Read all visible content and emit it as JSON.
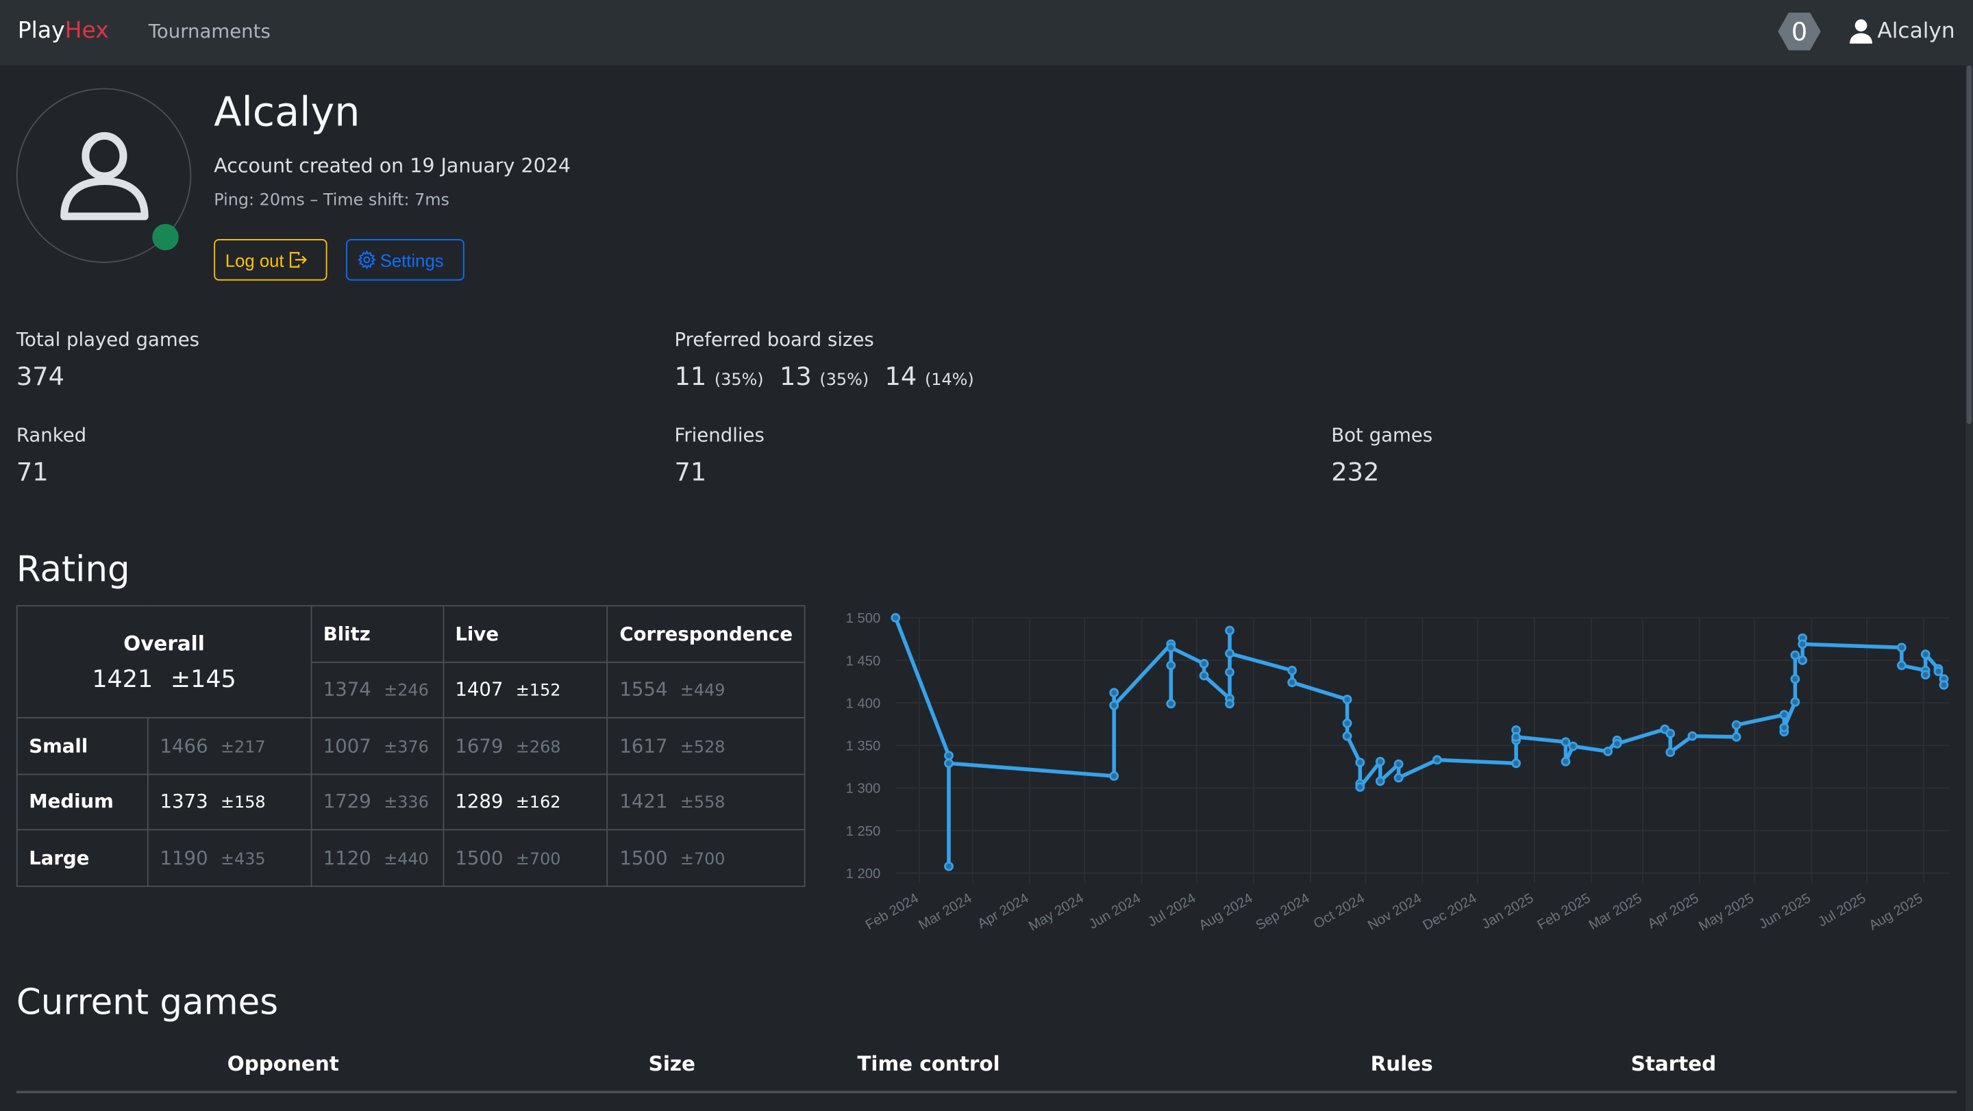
{
  "nav": {
    "logo_play": "Play",
    "logo_hex": "Hex",
    "tournaments": "Tournaments",
    "notification_count": "0",
    "username": "Alcalyn"
  },
  "profile": {
    "name": "Alcalyn",
    "created": "Account created on 19 January 2024",
    "ping": "Ping: 20ms – Time shift: 7ms",
    "logout": "Log out",
    "settings": "Settings",
    "online_color": "#198754"
  },
  "stats": {
    "total": {
      "label": "Total played games",
      "value": "374"
    },
    "preferred": {
      "label": "Preferred board sizes",
      "sizes": [
        {
          "size": "11",
          "pct": "(35%)"
        },
        {
          "size": "13",
          "pct": "(35%)"
        },
        {
          "size": "14",
          "pct": "(14%)"
        }
      ]
    },
    "ranked": {
      "label": "Ranked",
      "value": "71"
    },
    "friendlies": {
      "label": "Friendlies",
      "value": "71"
    },
    "bot": {
      "label": "Bot games",
      "value": "232"
    }
  },
  "rating": {
    "title": "Rating",
    "headers": {
      "overall": "Overall",
      "blitz": "Blitz",
      "live": "Live",
      "correspondence": "Correspondence"
    },
    "overall": {
      "value": "1421",
      "dev": "±145"
    },
    "overall_row": {
      "blitz": [
        "1374",
        "±246"
      ],
      "live": [
        "1407",
        "±152"
      ],
      "correspondence": [
        "1554",
        "±449"
      ]
    },
    "rows": [
      {
        "label": "Small",
        "overall": [
          "1466",
          "±217"
        ],
        "blitz": [
          "1007",
          "±376"
        ],
        "live": [
          "1679",
          "±268"
        ],
        "correspondence": [
          "1617",
          "±528"
        ]
      },
      {
        "label": "Medium",
        "overall": [
          "1373",
          "±158"
        ],
        "blitz": [
          "1729",
          "±336"
        ],
        "live": [
          "1289",
          "±162"
        ],
        "correspondence": [
          "1421",
          "±558"
        ]
      },
      {
        "label": "Large",
        "overall": [
          "1190",
          "±435"
        ],
        "blitz": [
          "1120",
          "±440"
        ],
        "live": [
          "1500",
          "±700"
        ],
        "correspondence": [
          "1500",
          "±700"
        ]
      }
    ]
  },
  "chart_data": {
    "type": "line",
    "color": "#36a2eb",
    "grid": true,
    "ylim": [
      1200,
      1500
    ],
    "yticks": [
      "1 500",
      "1 450",
      "1 400",
      "1 350",
      "1 300",
      "1 250",
      "1 200"
    ],
    "yticks_values": [
      1500,
      1450,
      1400,
      1350,
      1300,
      1250,
      1200
    ],
    "xticks": [
      [
        "2024-02-01",
        "Feb 2024"
      ],
      [
        "2024-03-01",
        "Mar 2024"
      ],
      [
        "2024-04-01",
        "Apr 2024"
      ],
      [
        "2024-05-01",
        "May 2024"
      ],
      [
        "2024-06-01",
        "Jun 2024"
      ],
      [
        "2024-07-01",
        "Jul 2024"
      ],
      [
        "2024-08-01",
        "Aug 2024"
      ],
      [
        "2024-09-01",
        "Sep 2024"
      ],
      [
        "2024-10-01",
        "Oct 2024"
      ],
      [
        "2024-11-01",
        "Nov 2024"
      ],
      [
        "2024-12-01",
        "Dec 2024"
      ],
      [
        "2025-01-01",
        "Jan 2025"
      ],
      [
        "2025-02-01",
        "Feb 2025"
      ],
      [
        "2025-03-01",
        "Mar 2025"
      ],
      [
        "2025-04-01",
        "Apr 2025"
      ],
      [
        "2025-05-01",
        "May 2025"
      ],
      [
        "2025-06-01",
        "Jun 2025"
      ],
      [
        "2025-07-01",
        "Jul 2025"
      ],
      [
        "2025-08-01",
        "Aug 2025"
      ]
    ],
    "points": [
      [
        "2024-01-19",
        1500
      ],
      [
        "2024-02-17",
        1338
      ],
      [
        "2024-02-17",
        1208
      ],
      [
        "2024-02-17",
        1329
      ],
      [
        "2024-05-17",
        1314
      ],
      [
        "2024-05-17",
        1397
      ],
      [
        "2024-05-17",
        1412
      ],
      [
        "2024-05-17",
        1397
      ],
      [
        "2024-06-17",
        1469
      ],
      [
        "2024-06-17",
        1444
      ],
      [
        "2024-06-17",
        1399
      ],
      [
        "2024-06-17",
        1465
      ],
      [
        "2024-07-05",
        1446
      ],
      [
        "2024-07-05",
        1432
      ],
      [
        "2024-07-19",
        1405
      ],
      [
        "2024-07-19",
        1399
      ],
      [
        "2024-07-19",
        1436
      ],
      [
        "2024-07-19",
        1485
      ],
      [
        "2024-07-19",
        1458
      ],
      [
        "2024-08-22",
        1438
      ],
      [
        "2024-08-22",
        1424
      ],
      [
        "2024-09-21",
        1404
      ],
      [
        "2024-09-21",
        1376
      ],
      [
        "2024-09-21",
        1361
      ],
      [
        "2024-09-28",
        1330
      ],
      [
        "2024-09-28",
        1305
      ],
      [
        "2024-09-28",
        1301
      ],
      [
        "2024-10-09",
        1331
      ],
      [
        "2024-10-09",
        1308
      ],
      [
        "2024-10-19",
        1328
      ],
      [
        "2024-10-19",
        1312
      ],
      [
        "2024-11-09",
        1333
      ],
      [
        "2024-12-22",
        1329
      ],
      [
        "2024-12-22",
        1368
      ],
      [
        "2024-12-22",
        1356
      ],
      [
        "2024-12-22",
        1360
      ],
      [
        "2025-01-18",
        1354
      ],
      [
        "2025-01-18",
        1331
      ],
      [
        "2025-01-22",
        1349
      ],
      [
        "2025-02-10",
        1343
      ],
      [
        "2025-02-15",
        1356
      ],
      [
        "2025-02-15",
        1352
      ],
      [
        "2025-03-13",
        1369
      ],
      [
        "2025-03-16",
        1364
      ],
      [
        "2025-03-16",
        1342
      ],
      [
        "2025-03-28",
        1361
      ],
      [
        "2025-04-21",
        1360
      ],
      [
        "2025-04-21",
        1374
      ],
      [
        "2025-05-17",
        1386
      ],
      [
        "2025-05-17",
        1366
      ],
      [
        "2025-05-17",
        1371
      ],
      [
        "2025-05-23",
        1401
      ],
      [
        "2025-05-23",
        1428
      ],
      [
        "2025-05-23",
        1456
      ],
      [
        "2025-05-27",
        1450
      ],
      [
        "2025-05-27",
        1476
      ],
      [
        "2025-05-27",
        1469
      ],
      [
        "2025-07-20",
        1465
      ],
      [
        "2025-07-20",
        1444
      ],
      [
        "2025-08-02",
        1438
      ],
      [
        "2025-08-02",
        1433
      ],
      [
        "2025-08-02",
        1457
      ],
      [
        "2025-08-09",
        1440
      ],
      [
        "2025-08-09",
        1437
      ],
      [
        "2025-08-12",
        1428
      ],
      [
        "2025-08-12",
        1421
      ]
    ]
  },
  "current_games": {
    "title": "Current games",
    "columns": [
      "Opponent",
      "Size",
      "Time control",
      "Rules",
      "Started"
    ]
  }
}
